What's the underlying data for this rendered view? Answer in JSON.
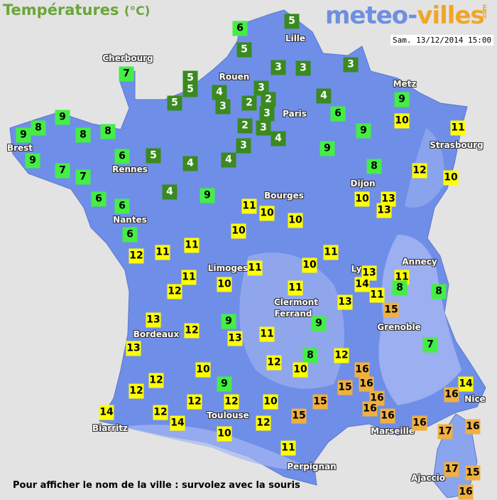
{
  "header": {
    "title": "Températures",
    "unit": "(°C)",
    "logo_part1": "meteo-",
    "logo_part2": "villes",
    "logo_tld": ".com",
    "datetime": "Sam. 13/12/2014 15:00"
  },
  "colors": {
    "land": "#6f8ee8",
    "cold": "#3a8a20",
    "cool": "#44ee44",
    "mild": "#ffff00",
    "warm": "#f0b040"
  },
  "cities": [
    "Cherbourg",
    "Lille",
    "Rouen",
    "Paris",
    "Metz",
    "Strasbourg",
    "Brest",
    "Rennes",
    "Dijon",
    "Bourges",
    "Nantes",
    "Limoges",
    "Ly",
    "Annecy",
    "Clermont",
    "Ferrand",
    "Grenoble",
    "Bordeaux",
    "Nice",
    "Toulouse",
    "Biarritz",
    "Marseille",
    "Perpignan",
    "Ajaccio"
  ],
  "temperatures": [
    6,
    5,
    5,
    7,
    5,
    5,
    4,
    3,
    3,
    3,
    3,
    2,
    2,
    5,
    3,
    3,
    4,
    9,
    6,
    9,
    8,
    9,
    8,
    8,
    2,
    3,
    4,
    9,
    10,
    11,
    3,
    9,
    6,
    5,
    4,
    4,
    9,
    7,
    7,
    8,
    12,
    10,
    6,
    6,
    4,
    9,
    10,
    13,
    13,
    11,
    10,
    10,
    10,
    6,
    12,
    11,
    11,
    11,
    11,
    10,
    11,
    12,
    10,
    11,
    13,
    14,
    11,
    11,
    8,
    8,
    15,
    13,
    13,
    12,
    9,
    13,
    11,
    9,
    13,
    7,
    8,
    12,
    12,
    10,
    10,
    16,
    15,
    16,
    12,
    12,
    9,
    14,
    16,
    16,
    16,
    16,
    16,
    17,
    16,
    14,
    12,
    12,
    12,
    10,
    15,
    15,
    14,
    12,
    10,
    11,
    17,
    15,
    16
  ],
  "footer": "Pour afficher le nom de la ville : survolez avec la souris"
}
